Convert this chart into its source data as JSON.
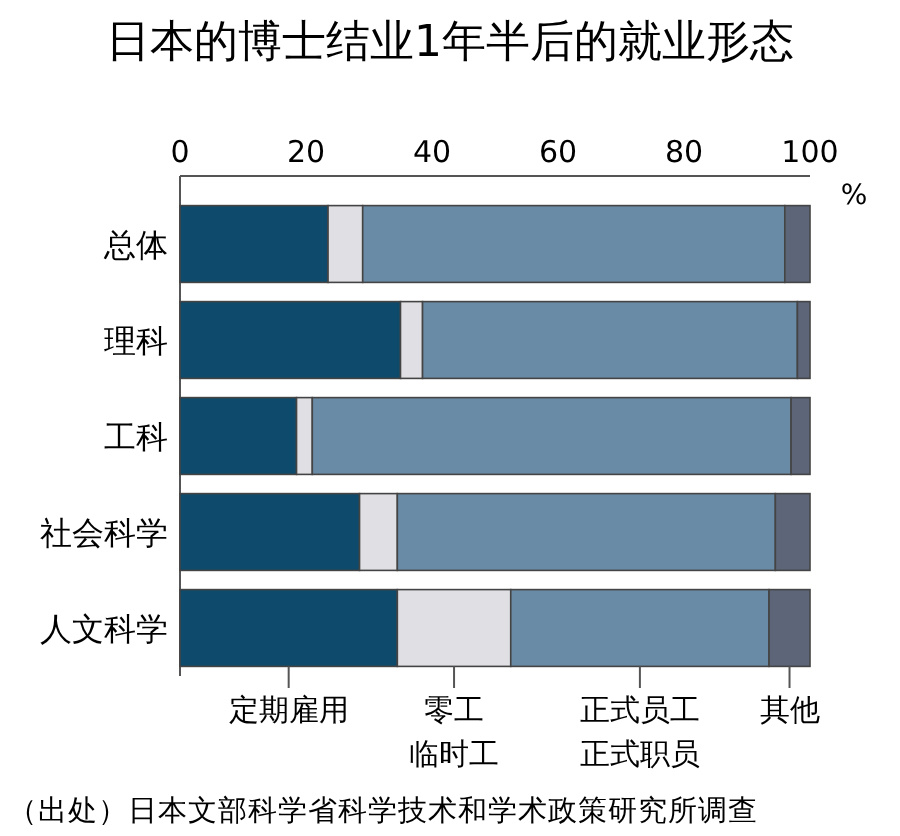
{
  "chart_data": {
    "type": "bar",
    "orientation": "horizontal",
    "stacked": true,
    "title": "日本的博士结业1年半后的就业形态",
    "xlabel": "%",
    "categories": [
      "总体",
      "理科",
      "工科",
      "社会科学",
      "人文科学"
    ],
    "series": [
      {
        "name": "定期雇用",
        "color": "#0d4a6b",
        "values": [
          23.5,
          35,
          18.5,
          28.5,
          34.5
        ]
      },
      {
        "name": "零工临时工",
        "color": "#e0e0e4",
        "values": [
          5.5,
          3.5,
          2.5,
          6,
          18
        ]
      },
      {
        "name": "正式员工正式职员",
        "color": "#6a8ba6",
        "values": [
          67,
          59.5,
          76,
          60,
          41
        ]
      },
      {
        "name": "其他",
        "color": "#5c6678",
        "values": [
          4,
          2,
          3,
          5.5,
          6.5
        ]
      }
    ],
    "xlim": [
      0,
      100
    ],
    "xticks": [
      0,
      20,
      40,
      60,
      80,
      100
    ],
    "legend": "bottom",
    "annotations": [
      "（出处）日本文部科学省科学技术和学术政策研究所调查"
    ]
  }
}
